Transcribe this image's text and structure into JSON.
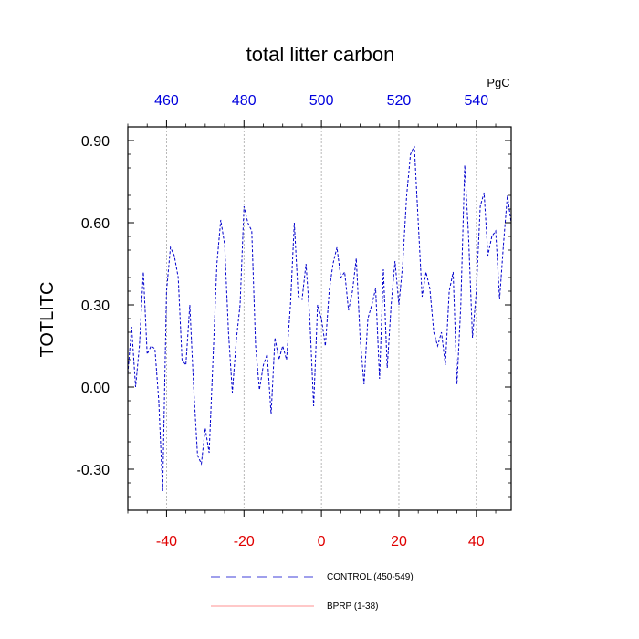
{
  "chart_data": {
    "type": "line",
    "title": "total litter carbon",
    "ylabel": "TOTLITC",
    "top_axis_units": "PgC",
    "xlim": [
      -50,
      49
    ],
    "ylim": [
      -0.45,
      0.95
    ],
    "yticks": [
      -0.3,
      0.0,
      0.3,
      0.6,
      0.9
    ],
    "ytick_labels": [
      "-0.30",
      "0.00",
      "0.30",
      "0.60",
      "0.90"
    ],
    "xticks_bottom": [
      -40,
      -20,
      0,
      20,
      40
    ],
    "xtick_labels_bottom": [
      "-40",
      "-20",
      "0",
      "20",
      "40"
    ],
    "xticks_top": [
      -40,
      -20,
      0,
      20,
      40
    ],
    "xtick_labels_top": [
      "460",
      "480",
      "500",
      "520",
      "540"
    ],
    "vertical_gridlines_at": [
      -40,
      -20,
      0,
      20,
      40
    ],
    "bottom_axis_color": "#e00000",
    "top_axis_color": "#0000dd",
    "series": [
      {
        "name": "CONTROL (450-549)",
        "color": "#0000cc",
        "style": "dashed",
        "x": [
          -50,
          -49,
          -48,
          -47,
          -46,
          -45,
          -44,
          -43,
          -42,
          -41,
          -40,
          -39,
          -38,
          -37,
          -36,
          -35,
          -34,
          -33,
          -32,
          -31,
          -30,
          -29,
          -28,
          -27,
          -26,
          -25,
          -24,
          -23,
          -22,
          -21,
          -20,
          -19,
          -18,
          -17,
          -16,
          -15,
          -14,
          -13,
          -12,
          -11,
          -10,
          -9,
          -8,
          -7,
          -6,
          -5,
          -4,
          -3,
          -2,
          -1,
          0,
          1,
          2,
          3,
          4,
          5,
          6,
          7,
          8,
          9,
          10,
          11,
          12,
          13,
          14,
          15,
          16,
          17,
          18,
          19,
          20,
          21,
          22,
          23,
          24,
          25,
          26,
          27,
          28,
          29,
          30,
          31,
          32,
          33,
          34,
          35,
          36,
          37,
          38,
          39,
          40,
          41,
          42,
          43,
          44,
          45,
          46,
          47,
          48,
          49
        ],
        "y": [
          0.05,
          0.22,
          0.0,
          0.15,
          0.42,
          0.12,
          0.15,
          0.14,
          -0.05,
          -0.38,
          0.35,
          0.51,
          0.48,
          0.4,
          0.1,
          0.08,
          0.3,
          0.0,
          -0.25,
          -0.28,
          -0.15,
          -0.24,
          0.1,
          0.45,
          0.61,
          0.52,
          0.2,
          -0.02,
          0.17,
          0.3,
          0.66,
          0.6,
          0.57,
          0.15,
          -0.01,
          0.08,
          0.12,
          -0.1,
          0.18,
          0.1,
          0.15,
          0.1,
          0.3,
          0.6,
          0.33,
          0.32,
          0.45,
          0.25,
          -0.07,
          0.3,
          0.25,
          0.15,
          0.35,
          0.45,
          0.51,
          0.4,
          0.42,
          0.28,
          0.35,
          0.47,
          0.18,
          0.01,
          0.25,
          0.3,
          0.36,
          0.03,
          0.43,
          0.07,
          0.3,
          0.46,
          0.3,
          0.45,
          0.7,
          0.85,
          0.88,
          0.6,
          0.33,
          0.42,
          0.36,
          0.2,
          0.15,
          0.2,
          0.08,
          0.35,
          0.42,
          0.01,
          0.3,
          0.81,
          0.55,
          0.18,
          0.35,
          0.66,
          0.71,
          0.48,
          0.55,
          0.57,
          0.32,
          0.52,
          0.7,
          0.6
        ]
      },
      {
        "name": "BPRP (1-38)",
        "color": "#ff6b6b",
        "style": "solid",
        "x": [],
        "y": []
      }
    ],
    "legend": {
      "placement": "bottom-center"
    }
  }
}
